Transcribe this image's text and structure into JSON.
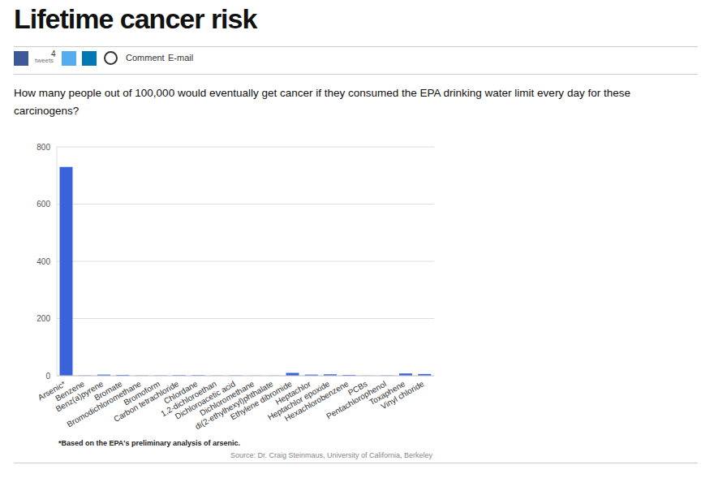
{
  "share": {
    "count": 4,
    "count_label": "tweets",
    "comment": "Comment",
    "email": "E-mail"
  },
  "chart_data": {
    "type": "bar",
    "title": "Lifetime cancer risk",
    "subtitle": "How many people out of 100,000 would eventually get cancer if they consumed the EPA drinking water limit every day for these carcinogens?",
    "categories": [
      "Arsenic*",
      "Benzene",
      "Benz(a)pyrene",
      "Bromate",
      "Bromodichloromethane",
      "Bromoform",
      "Carbon tetrachloride",
      "Chlordane",
      "1,2-dichloroethan",
      "Dichloroacetic acid",
      "Dichloromethane",
      "di(2-ethylhexyl)phthalate",
      "Ethylene dibromide",
      "Heptachlor",
      "Heptachlor epoxide",
      "Hexachlorobenzene",
      "PCBs",
      "Pentachlorophenol",
      "Toxaphene",
      "Vinyl chloride"
    ],
    "values": [
      730,
      1,
      4,
      3,
      1,
      1,
      2,
      2,
      1,
      1,
      0.5,
      0.5,
      10,
      4,
      5,
      3,
      0.5,
      1,
      8,
      6
    ],
    "color": "#3a62d9",
    "ylim": [
      0,
      800
    ],
    "yticks": [
      0,
      200,
      400,
      600,
      800
    ],
    "grid": true,
    "footnote": "*Based on the EPA's preliminary analysis of arsenic.",
    "source": "Source: Dr. Craig Steinmaus, University of California, Berkeley"
  }
}
